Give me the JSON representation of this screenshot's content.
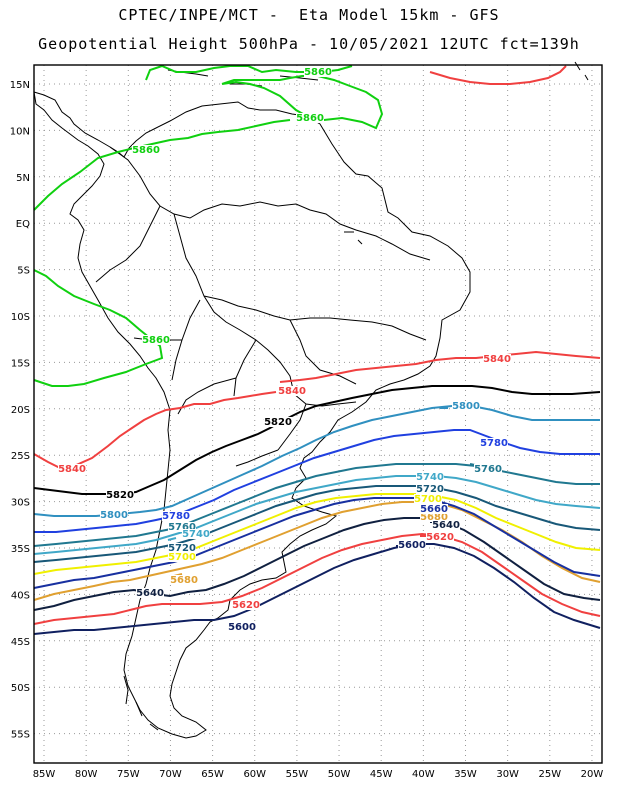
{
  "header": {
    "line1": "CPTEC/INPE/MCT -  Eta Model 15km - GFS",
    "line2": "Geopotential Height 500hPa - 10/05/2021 12UTC fct=139h"
  },
  "axes": {
    "lon_labels": [
      "85W",
      "80W",
      "75W",
      "70W",
      "65W",
      "60W",
      "55W",
      "50W",
      "45W",
      "40W",
      "35W",
      "30W",
      "25W",
      "20W"
    ],
    "lat_labels": [
      "15N",
      "10N",
      "5N",
      "EQ",
      "5S",
      "10S",
      "15S",
      "20S",
      "25S",
      "30S",
      "35S",
      "40S",
      "45S",
      "50S",
      "55S"
    ]
  },
  "colors": {
    "5860": "#10d010",
    "5840": "#f04040",
    "5820": "#000000",
    "5800": "#3090c0",
    "5780": "#2040e0",
    "5760": "#207890",
    "5740": "#40a8c8",
    "5720": "#185878",
    "5700": "#f0f000",
    "5680": "#e0a030",
    "5660": "#1830a0",
    "5640": "#102040",
    "5620": "#f04040",
    "5600": "#102060"
  },
  "contours": [
    {
      "value": "5860",
      "color_key": "5860",
      "label": "5860"
    },
    {
      "value": "5860",
      "color_key": "5860",
      "label": "5860"
    },
    {
      "value": "5860",
      "color_key": "5860",
      "label": "5860"
    },
    {
      "value": "5860",
      "color_key": "5860",
      "label": "5860"
    },
    {
      "value": "5840",
      "color_key": "5840",
      "label": "5840"
    },
    {
      "value": "5840",
      "color_key": "5840",
      "label": "5840"
    },
    {
      "value": "5840",
      "color_key": "5840",
      "label": "5840"
    },
    {
      "value": "5820",
      "color_key": "5820",
      "label": "5820"
    },
    {
      "value": "5820",
      "color_key": "5820",
      "label": "5820"
    },
    {
      "value": "5800",
      "color_key": "5800",
      "label": "5800"
    },
    {
      "value": "5800",
      "color_key": "5800",
      "label": "5800"
    },
    {
      "value": "5780",
      "color_key": "5780",
      "label": "5780"
    },
    {
      "value": "5780",
      "color_key": "5780",
      "label": "5780"
    },
    {
      "value": "5760",
      "color_key": "5760",
      "label": "5760"
    },
    {
      "value": "5760",
      "color_key": "5760",
      "label": "5760"
    },
    {
      "value": "5740",
      "color_key": "5740",
      "label": "5740"
    },
    {
      "value": "5740",
      "color_key": "5740",
      "label": "5740"
    },
    {
      "value": "5720",
      "color_key": "5720",
      "label": "5720"
    },
    {
      "value": "5720",
      "color_key": "5720",
      "label": "5720"
    },
    {
      "value": "5700",
      "color_key": "5700",
      "label": "5700"
    },
    {
      "value": "5700",
      "color_key": "5700",
      "label": "5700"
    },
    {
      "value": "5680",
      "color_key": "5680",
      "label": "5680"
    },
    {
      "value": "5680",
      "color_key": "5680",
      "label": "5680"
    },
    {
      "value": "5660",
      "color_key": "5660",
      "label": "5660"
    },
    {
      "value": "5640",
      "color_key": "5640",
      "label": "5640"
    },
    {
      "value": "5640",
      "color_key": "5640",
      "label": "5640"
    },
    {
      "value": "5620",
      "color_key": "5620",
      "label": "5620"
    },
    {
      "value": "5620",
      "color_key": "5620",
      "label": "5620"
    },
    {
      "value": "5600",
      "color_key": "5600",
      "label": "5600"
    },
    {
      "value": "5600",
      "color_key": "5600",
      "label": "5600"
    }
  ]
}
